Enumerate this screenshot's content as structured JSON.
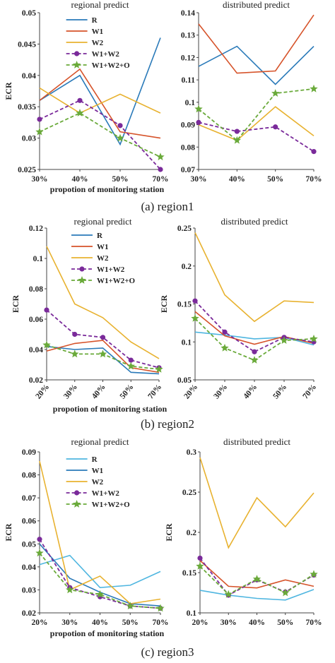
{
  "colors": {
    "R": "#2a7ab9",
    "W1": "#d6532a",
    "W2": "#e8b230",
    "W1+W2": "#7a2a9a",
    "W1+W2+O": "#6aaa3a",
    "R3": "#4fb6e0"
  },
  "panels": [
    {
      "caption": "(a) region1",
      "xlabel": "propotion of monitoring station",
      "charts": [
        {
          "type": "line",
          "title": "regional predict",
          "ylabel": "ECR",
          "categories": [
            "30%",
            "40%",
            "50%",
            "70%"
          ],
          "ylim": [
            0.025,
            0.05
          ],
          "yticks": [
            "0.025",
            "0.03",
            "0.035",
            "0.04",
            "0.045",
            "0.05"
          ],
          "yticks_num": [
            0.025,
            0.03,
            0.035,
            0.04,
            0.045,
            0.05
          ],
          "legend": "top-right",
          "series": [
            {
              "name": "R",
              "color": "#2a7ab9",
              "dashed": false,
              "marker": "",
              "values": [
                0.036,
                0.04,
                0.029,
                0.046
              ]
            },
            {
              "name": "W1",
              "color": "#d6532a",
              "dashed": false,
              "marker": "",
              "values": [
                0.036,
                0.041,
                0.031,
                0.03
              ]
            },
            {
              "name": "W2",
              "color": "#e8b230",
              "dashed": false,
              "marker": "",
              "values": [
                0.038,
                0.034,
                0.037,
                0.034
              ]
            },
            {
              "name": "W1+W2",
              "color": "#7a2a9a",
              "dashed": true,
              "marker": "circle",
              "values": [
                0.033,
                0.036,
                0.032,
                0.025
              ]
            },
            {
              "name": "W1+W2+O",
              "color": "#6aaa3a",
              "dashed": true,
              "marker": "star",
              "values": [
                0.031,
                0.034,
                0.03,
                0.027
              ]
            }
          ]
        },
        {
          "type": "line",
          "title": "distributed predict",
          "ylabel": "",
          "categories": [
            "30%",
            "40%",
            "50%",
            "70%"
          ],
          "ylim": [
            0.07,
            0.14
          ],
          "yticks": [
            "0.07",
            "0.08",
            "0.09",
            "0.1",
            "0.11",
            "0.12",
            "0.13",
            "0.14"
          ],
          "yticks_num": [
            0.07,
            0.08,
            0.09,
            0.1,
            0.11,
            0.12,
            0.13,
            0.14
          ],
          "legend": "none",
          "series": [
            {
              "name": "R",
              "color": "#2a7ab9",
              "dashed": false,
              "marker": "",
              "values": [
                0.116,
                0.125,
                0.108,
                0.125
              ]
            },
            {
              "name": "W1",
              "color": "#d6532a",
              "dashed": false,
              "marker": "",
              "values": [
                0.135,
                0.113,
                0.114,
                0.139
              ]
            },
            {
              "name": "W2",
              "color": "#e8b230",
              "dashed": false,
              "marker": "",
              "values": [
                0.09,
                0.083,
                0.098,
                0.085
              ]
            },
            {
              "name": "W1+W2",
              "color": "#7a2a9a",
              "dashed": true,
              "marker": "circle",
              "values": [
                0.091,
                0.087,
                0.089,
                0.078
              ]
            },
            {
              "name": "W1+W2+O",
              "color": "#6aaa3a",
              "dashed": true,
              "marker": "star",
              "values": [
                0.097,
                0.083,
                0.104,
                0.106
              ]
            }
          ]
        }
      ]
    },
    {
      "caption": "(b) region2",
      "xlabel": "propotion of monitoring station",
      "charts": [
        {
          "type": "line",
          "title": "regional predict",
          "ylabel": "ECR",
          "categories": [
            "20%",
            "30%",
            "40%",
            "50%",
            "70%"
          ],
          "ylim": [
            0.02,
            0.12
          ],
          "yticks": [
            "0.02",
            "0.04",
            "0.06",
            "0.08",
            "0.1",
            "0.12"
          ],
          "yticks_num": [
            0.02,
            0.04,
            0.06,
            0.08,
            0.1,
            0.12
          ],
          "legend": "top-right",
          "series": [
            {
              "name": "R",
              "color": "#2a7ab9",
              "dashed": false,
              "marker": "",
              "values": [
                0.042,
                0.04,
                0.041,
                0.025,
                0.024
              ]
            },
            {
              "name": "W1",
              "color": "#d6532a",
              "dashed": false,
              "marker": "",
              "values": [
                0.039,
                0.044,
                0.046,
                0.028,
                0.025
              ]
            },
            {
              "name": "W2",
              "color": "#e8b230",
              "dashed": false,
              "marker": "",
              "values": [
                0.108,
                0.07,
                0.061,
                0.045,
                0.034
              ]
            },
            {
              "name": "W1+W2",
              "color": "#7a2a9a",
              "dashed": true,
              "marker": "circle",
              "values": [
                0.066,
                0.05,
                0.048,
                0.033,
                0.028
              ]
            },
            {
              "name": "W1+W2+O",
              "color": "#6aaa3a",
              "dashed": true,
              "marker": "star",
              "values": [
                0.043,
                0.037,
                0.037,
                0.029,
                0.027
              ]
            }
          ]
        },
        {
          "type": "line",
          "title": "distributed predict",
          "ylabel": "ECR",
          "categories": [
            "20%",
            "30%",
            "40%",
            "50%",
            "70%"
          ],
          "ylim": [
            0.05,
            0.25
          ],
          "yticks": [
            "0.05",
            "0.1",
            "0.15",
            "0.2",
            "0.25"
          ],
          "yticks_num": [
            0.05,
            0.1,
            0.15,
            0.2,
            0.25
          ],
          "legend": "none",
          "series": [
            {
              "name": "R",
              "color": "#4fb6e0",
              "dashed": false,
              "marker": "",
              "values": [
                0.113,
                0.109,
                0.104,
                0.106,
                0.096
              ]
            },
            {
              "name": "W1",
              "color": "#d6532a",
              "dashed": false,
              "marker": "",
              "values": [
                0.14,
                0.108,
                0.097,
                0.107,
                0.098
              ]
            },
            {
              "name": "W2",
              "color": "#e8b230",
              "dashed": false,
              "marker": "",
              "values": [
                0.244,
                0.162,
                0.127,
                0.154,
                0.152
              ]
            },
            {
              "name": "W1+W2",
              "color": "#7a2a9a",
              "dashed": true,
              "marker": "circle",
              "values": [
                0.154,
                0.113,
                0.087,
                0.106,
                0.1
              ]
            },
            {
              "name": "W1+W2+O",
              "color": "#6aaa3a",
              "dashed": true,
              "marker": "star",
              "values": [
                0.131,
                0.092,
                0.076,
                0.102,
                0.104
              ]
            }
          ]
        }
      ]
    },
    {
      "caption": "(c) region3",
      "xlabel": "propotion of monitoring station",
      "charts": [
        {
          "type": "line",
          "title": "regional predict",
          "ylabel": "ECR",
          "categories": [
            "20%",
            "30%",
            "40%",
            "50%",
            "70%"
          ],
          "ylim": [
            0.02,
            0.09
          ],
          "yticks": [
            "0.02",
            "0.03",
            "0.04",
            "0.05",
            "0.06",
            "0.07",
            "0.08",
            "0.09"
          ],
          "yticks_num": [
            0.02,
            0.03,
            0.04,
            0.05,
            0.06,
            0.07,
            0.08,
            0.09
          ],
          "legend": "top-right",
          "series": [
            {
              "name": "R",
              "color": "#4fb6e0",
              "dashed": false,
              "marker": "",
              "values": [
                0.041,
                0.045,
                0.031,
                0.032,
                0.038
              ]
            },
            {
              "name": "W1",
              "color": "#2a7ab9",
              "dashed": false,
              "marker": "",
              "values": [
                0.05,
                0.035,
                0.029,
                0.024,
                0.023
              ]
            },
            {
              "name": "W2",
              "color": "#e8b230",
              "dashed": false,
              "marker": "",
              "values": [
                0.086,
                0.03,
                0.036,
                0.024,
                0.026
              ]
            },
            {
              "name": "W1+W2",
              "color": "#7a2a9a",
              "dashed": true,
              "marker": "circle",
              "values": [
                0.052,
                0.031,
                0.027,
                0.023,
                0.022
              ]
            },
            {
              "name": "W1+W2+O",
              "color": "#6aaa3a",
              "dashed": true,
              "marker": "star",
              "values": [
                0.046,
                0.03,
                0.028,
                0.023,
                0.022
              ]
            }
          ]
        },
        {
          "type": "line",
          "title": "distributed predict",
          "ylabel": "ECR",
          "categories": [
            "20%",
            "30%",
            "40%",
            "50%",
            "70%"
          ],
          "ylim": [
            0.1,
            0.3
          ],
          "yticks": [
            "0.1",
            "0.15",
            "0.2",
            "0.25",
            "0.3"
          ],
          "yticks_num": [
            0.1,
            0.15,
            0.2,
            0.25,
            0.3
          ],
          "legend": "none",
          "series": [
            {
              "name": "R",
              "color": "#4fb6e0",
              "dashed": false,
              "marker": "",
              "values": [
                0.128,
                0.122,
                0.118,
                0.116,
                0.129
              ]
            },
            {
              "name": "W1",
              "color": "#d6532a",
              "dashed": false,
              "marker": "",
              "values": [
                0.165,
                0.133,
                0.131,
                0.141,
                0.133
              ]
            },
            {
              "name": "W2",
              "color": "#e8b230",
              "dashed": false,
              "marker": "",
              "values": [
                0.293,
                0.181,
                0.243,
                0.207,
                0.249
              ]
            },
            {
              "name": "W1+W2",
              "color": "#7a2a9a",
              "dashed": true,
              "marker": "circle",
              "values": [
                0.168,
                0.122,
                0.141,
                0.126,
                0.147
              ]
            },
            {
              "name": "W1+W2+O",
              "color": "#6aaa3a",
              "dashed": true,
              "marker": "star",
              "values": [
                0.158,
                0.123,
                0.142,
                0.125,
                0.148
              ]
            }
          ]
        }
      ]
    }
  ]
}
